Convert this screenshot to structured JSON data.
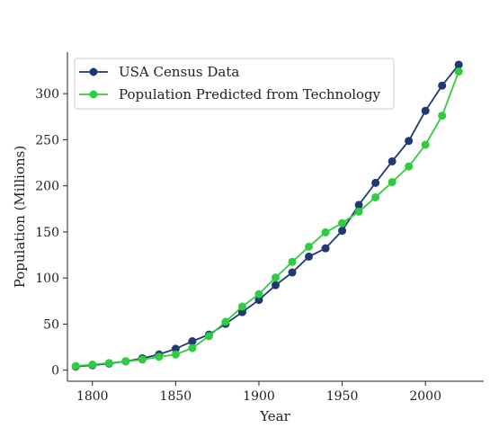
{
  "chart_data": {
    "type": "line",
    "xlabel": "Year",
    "ylabel": "Population (Millions)",
    "xlim": [
      1785,
      2035
    ],
    "ylim": [
      -12,
      345
    ],
    "xticks": [
      1800,
      1850,
      1900,
      1950,
      2000
    ],
    "yticks": [
      0,
      50,
      100,
      150,
      200,
      250,
      300
    ],
    "grid": false,
    "legend_position": "upper-left",
    "x": [
      1790,
      1800,
      1810,
      1820,
      1830,
      1840,
      1850,
      1860,
      1870,
      1880,
      1890,
      1900,
      1910,
      1920,
      1930,
      1940,
      1950,
      1960,
      1970,
      1980,
      1990,
      2000,
      2010,
      2020
    ],
    "series": [
      {
        "name": "USA Census Data",
        "color": "#1f3a73",
        "values": [
          3.9,
          5.3,
          7.2,
          9.6,
          12.9,
          17.1,
          23.2,
          31.4,
          38.6,
          50.2,
          63.0,
          76.2,
          92.2,
          106.0,
          123.2,
          132.2,
          151.3,
          179.3,
          203.2,
          226.5,
          248.7,
          281.4,
          308.7,
          331.4
        ]
      },
      {
        "name": "Population Predicted from Technology",
        "color": "#2ecc40",
        "values": [
          4.5,
          6.0,
          7.8,
          9.5,
          11.5,
          14.5,
          17.0,
          24.0,
          37.0,
          52.5,
          69.0,
          82.5,
          100.5,
          117.5,
          134.0,
          149.5,
          159.5,
          172.0,
          187.5,
          204.0,
          221.0,
          244.5,
          276.0,
          324.0
        ]
      }
    ]
  }
}
